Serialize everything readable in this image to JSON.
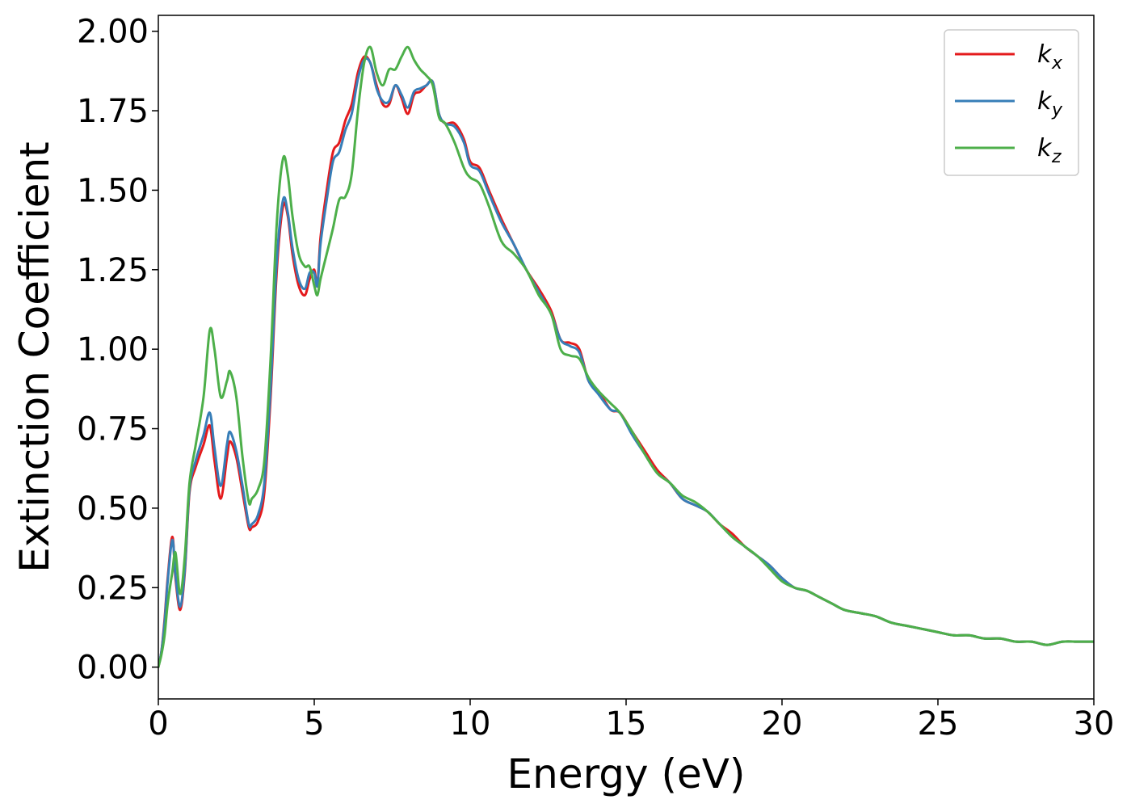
{
  "chart_data": {
    "type": "line",
    "title": "",
    "xlabel": "Energy (eV)",
    "ylabel": "Extinction Coefficient",
    "xlim": [
      0,
      30
    ],
    "ylim": [
      -0.1,
      2.05
    ],
    "xticks": [
      0,
      5,
      10,
      15,
      20,
      25,
      30
    ],
    "xtick_labels": [
      "0",
      "5",
      "10",
      "15",
      "20",
      "25",
      "30"
    ],
    "yticks": [
      0,
      0.25,
      0.5,
      0.75,
      1.0,
      1.25,
      1.5,
      1.75,
      2.0
    ],
    "ytick_labels": [
      "0.00",
      "0.25",
      "0.50",
      "0.75",
      "1.00",
      "1.25",
      "1.50",
      "1.75",
      "2.00"
    ],
    "grid": false,
    "legend_position": "top-right",
    "series": [
      {
        "name": "k_x",
        "legend_base": "k",
        "legend_sub": "x",
        "color": "#e41a1c",
        "x": [
          0,
          0.1,
          0.2,
          0.3,
          0.45,
          0.55,
          0.7,
          0.85,
          1.0,
          1.2,
          1.45,
          1.65,
          1.8,
          2.0,
          2.2,
          2.3,
          2.5,
          2.7,
          2.9,
          3.0,
          3.2,
          3.4,
          3.6,
          3.8,
          4.0,
          4.15,
          4.3,
          4.5,
          4.7,
          4.85,
          5.0,
          5.1,
          5.2,
          5.4,
          5.6,
          5.8,
          6.0,
          6.2,
          6.4,
          6.6,
          6.8,
          7.0,
          7.2,
          7.4,
          7.6,
          7.8,
          8.0,
          8.2,
          8.4,
          8.6,
          8.8,
          9.0,
          9.2,
          9.5,
          9.8,
          10.0,
          10.3,
          10.6,
          11.0,
          11.4,
          11.8,
          12.2,
          12.6,
          12.9,
          13.2,
          13.5,
          13.8,
          14.1,
          14.5,
          14.8,
          15.2,
          15.6,
          16.0,
          16.4,
          16.8,
          17.2,
          17.6,
          18.0,
          18.4,
          18.8,
          19.2,
          19.6,
          20.0,
          20.4,
          20.8,
          21.2,
          21.6,
          22.0,
          22.5,
          23.0,
          23.5,
          24.0,
          24.5,
          25.0,
          25.5,
          26.0,
          26.5,
          27.0,
          27.5,
          28.0,
          28.5,
          29.0,
          29.5,
          30.0
        ],
        "y": [
          0.0,
          0.05,
          0.15,
          0.28,
          0.41,
          0.28,
          0.18,
          0.3,
          0.55,
          0.63,
          0.7,
          0.76,
          0.65,
          0.53,
          0.66,
          0.71,
          0.66,
          0.55,
          0.44,
          0.44,
          0.46,
          0.55,
          0.85,
          1.25,
          1.45,
          1.42,
          1.3,
          1.2,
          1.17,
          1.22,
          1.25,
          1.2,
          1.35,
          1.5,
          1.62,
          1.65,
          1.72,
          1.77,
          1.87,
          1.92,
          1.9,
          1.83,
          1.77,
          1.77,
          1.83,
          1.79,
          1.74,
          1.8,
          1.81,
          1.83,
          1.84,
          1.74,
          1.71,
          1.71,
          1.66,
          1.59,
          1.57,
          1.5,
          1.41,
          1.33,
          1.25,
          1.19,
          1.12,
          1.03,
          1.02,
          1.0,
          0.9,
          0.87,
          0.81,
          0.8,
          0.74,
          0.68,
          0.62,
          0.58,
          0.53,
          0.51,
          0.49,
          0.45,
          0.42,
          0.38,
          0.35,
          0.32,
          0.28,
          0.25,
          0.24,
          0.22,
          0.2,
          0.18,
          0.17,
          0.16,
          0.14,
          0.13,
          0.12,
          0.11,
          0.1,
          0.1,
          0.09,
          0.09,
          0.08,
          0.08,
          0.07,
          0.08,
          0.08,
          0.08
        ]
      },
      {
        "name": "k_y",
        "legend_base": "k",
        "legend_sub": "y",
        "color": "#377eb8",
        "x": [
          0,
          0.1,
          0.2,
          0.3,
          0.45,
          0.55,
          0.7,
          0.85,
          1.0,
          1.2,
          1.45,
          1.65,
          1.8,
          2.0,
          2.2,
          2.3,
          2.5,
          2.7,
          2.9,
          3.0,
          3.2,
          3.4,
          3.6,
          3.8,
          4.0,
          4.15,
          4.3,
          4.5,
          4.7,
          4.85,
          5.0,
          5.1,
          5.2,
          5.4,
          5.6,
          5.8,
          6.0,
          6.2,
          6.4,
          6.6,
          6.8,
          7.0,
          7.2,
          7.4,
          7.6,
          7.8,
          8.0,
          8.2,
          8.4,
          8.6,
          8.8,
          9.0,
          9.2,
          9.5,
          9.8,
          10.0,
          10.3,
          10.6,
          11.0,
          11.4,
          11.8,
          12.2,
          12.6,
          12.9,
          13.2,
          13.5,
          13.8,
          14.1,
          14.5,
          14.8,
          15.2,
          15.6,
          16.0,
          16.4,
          16.8,
          17.2,
          17.6,
          18.0,
          18.4,
          18.8,
          19.2,
          19.6,
          20.0,
          20.4,
          20.8,
          21.2,
          21.6,
          22.0,
          22.5,
          23.0,
          23.5,
          24.0,
          24.5,
          25.0,
          25.5,
          26.0,
          26.5,
          27.0,
          27.5,
          28.0,
          28.5,
          29.0,
          29.5,
          30.0
        ],
        "y": [
          0.0,
          0.05,
          0.14,
          0.27,
          0.4,
          0.29,
          0.19,
          0.31,
          0.56,
          0.65,
          0.73,
          0.8,
          0.69,
          0.57,
          0.7,
          0.74,
          0.68,
          0.57,
          0.45,
          0.45,
          0.48,
          0.58,
          0.88,
          1.28,
          1.47,
          1.43,
          1.32,
          1.22,
          1.19,
          1.24,
          1.24,
          1.2,
          1.33,
          1.47,
          1.59,
          1.62,
          1.69,
          1.74,
          1.85,
          1.91,
          1.9,
          1.82,
          1.78,
          1.78,
          1.83,
          1.8,
          1.76,
          1.81,
          1.82,
          1.83,
          1.84,
          1.74,
          1.71,
          1.7,
          1.65,
          1.58,
          1.56,
          1.49,
          1.4,
          1.33,
          1.25,
          1.18,
          1.11,
          1.03,
          1.01,
          0.99,
          0.9,
          0.86,
          0.81,
          0.8,
          0.73,
          0.67,
          0.61,
          0.58,
          0.53,
          0.51,
          0.49,
          0.45,
          0.41,
          0.38,
          0.35,
          0.32,
          0.28,
          0.25,
          0.24,
          0.22,
          0.2,
          0.18,
          0.17,
          0.16,
          0.14,
          0.13,
          0.12,
          0.11,
          0.1,
          0.1,
          0.09,
          0.09,
          0.08,
          0.08,
          0.07,
          0.08,
          0.08,
          0.08
        ]
      },
      {
        "name": "k_z",
        "legend_base": "k",
        "legend_sub": "z",
        "color": "#4daf4a",
        "x": [
          0,
          0.1,
          0.2,
          0.3,
          0.45,
          0.55,
          0.7,
          0.85,
          1.0,
          1.2,
          1.45,
          1.65,
          1.8,
          2.0,
          2.2,
          2.3,
          2.5,
          2.7,
          2.9,
          3.0,
          3.2,
          3.4,
          3.6,
          3.8,
          4.0,
          4.15,
          4.3,
          4.5,
          4.7,
          4.85,
          5.0,
          5.1,
          5.2,
          5.4,
          5.6,
          5.8,
          6.0,
          6.2,
          6.4,
          6.6,
          6.8,
          7.0,
          7.2,
          7.4,
          7.6,
          7.8,
          8.0,
          8.2,
          8.4,
          8.6,
          8.8,
          9.0,
          9.2,
          9.5,
          9.8,
          10.0,
          10.3,
          10.6,
          11.0,
          11.4,
          11.8,
          12.2,
          12.6,
          12.9,
          13.2,
          13.5,
          13.8,
          14.1,
          14.5,
          14.8,
          15.2,
          15.6,
          16.0,
          16.4,
          16.8,
          17.2,
          17.6,
          18.0,
          18.4,
          18.8,
          19.2,
          19.6,
          20.0,
          20.4,
          20.8,
          21.2,
          21.6,
          22.0,
          22.5,
          23.0,
          23.5,
          24.0,
          24.5,
          25.0,
          25.5,
          26.0,
          26.5,
          27.0,
          27.5,
          28.0,
          28.5,
          29.0,
          29.5,
          30.0
        ],
        "y": [
          0.0,
          0.04,
          0.1,
          0.2,
          0.3,
          0.36,
          0.23,
          0.35,
          0.58,
          0.7,
          0.85,
          1.06,
          1.0,
          0.85,
          0.9,
          0.93,
          0.85,
          0.66,
          0.52,
          0.53,
          0.56,
          0.65,
          0.97,
          1.4,
          1.6,
          1.55,
          1.42,
          1.3,
          1.26,
          1.26,
          1.2,
          1.17,
          1.22,
          1.3,
          1.38,
          1.47,
          1.48,
          1.55,
          1.75,
          1.9,
          1.95,
          1.87,
          1.83,
          1.88,
          1.88,
          1.92,
          1.95,
          1.91,
          1.88,
          1.86,
          1.83,
          1.73,
          1.71,
          1.65,
          1.57,
          1.54,
          1.52,
          1.45,
          1.34,
          1.3,
          1.25,
          1.17,
          1.11,
          1.0,
          0.98,
          0.97,
          0.91,
          0.87,
          0.83,
          0.8,
          0.74,
          0.67,
          0.61,
          0.58,
          0.54,
          0.52,
          0.49,
          0.45,
          0.41,
          0.38,
          0.35,
          0.31,
          0.27,
          0.25,
          0.24,
          0.22,
          0.2,
          0.18,
          0.17,
          0.16,
          0.14,
          0.13,
          0.12,
          0.11,
          0.1,
          0.1,
          0.09,
          0.09,
          0.08,
          0.08,
          0.07,
          0.08,
          0.08,
          0.08
        ]
      }
    ]
  }
}
